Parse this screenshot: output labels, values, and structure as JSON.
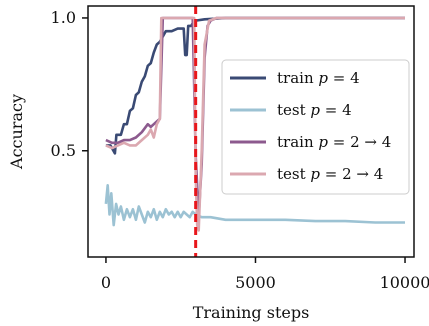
{
  "chart_data": {
    "type": "line",
    "xlabel": "Training steps",
    "ylabel": "Accuracy",
    "xlim": [
      -600,
      10300
    ],
    "ylim": [
      0.1,
      1.045
    ],
    "xticks": [
      {
        "value": 0,
        "label": "0"
      },
      {
        "value": 5000,
        "label": "5000"
      },
      {
        "value": 10000,
        "label": "10000"
      }
    ],
    "yticks": [
      {
        "value": 0.5,
        "label": "0.5"
      },
      {
        "value": 1.0,
        "label": "1.0"
      }
    ],
    "grid": false,
    "legend_position": "center-right",
    "vline": {
      "x": 3000,
      "color": "#e8161b",
      "style": "dashed"
    },
    "series": [
      {
        "name": "train p = 4",
        "color": "#3a4a74",
        "points": [
          [
            0,
            0.52
          ],
          [
            150,
            0.52
          ],
          [
            300,
            0.49
          ],
          [
            350,
            0.56
          ],
          [
            500,
            0.56
          ],
          [
            600,
            0.6
          ],
          [
            700,
            0.6
          ],
          [
            800,
            0.65
          ],
          [
            900,
            0.66
          ],
          [
            1000,
            0.71
          ],
          [
            1100,
            0.72
          ],
          [
            1200,
            0.76
          ],
          [
            1300,
            0.78
          ],
          [
            1400,
            0.82
          ],
          [
            1500,
            0.83
          ],
          [
            1600,
            0.87
          ],
          [
            1700,
            0.9
          ],
          [
            1800,
            0.91
          ],
          [
            1900,
            0.93
          ],
          [
            2000,
            0.95
          ],
          [
            2200,
            0.95
          ],
          [
            2400,
            0.96
          ],
          [
            2600,
            0.96
          ],
          [
            2650,
            0.86
          ],
          [
            2700,
            0.86
          ],
          [
            2750,
            0.97
          ],
          [
            2850,
            0.97
          ],
          [
            2900,
            0.98
          ],
          [
            3000,
            0.99
          ],
          [
            3300,
            0.995
          ],
          [
            4000,
            1.0
          ],
          [
            10000,
            1.0
          ]
        ]
      },
      {
        "name": "test p = 4",
        "color": "#9cc2d3",
        "points": [
          [
            0,
            0.3
          ],
          [
            60,
            0.37
          ],
          [
            120,
            0.26
          ],
          [
            180,
            0.34
          ],
          [
            260,
            0.22
          ],
          [
            340,
            0.3
          ],
          [
            420,
            0.26
          ],
          [
            500,
            0.29
          ],
          [
            600,
            0.24
          ],
          [
            700,
            0.28
          ],
          [
            800,
            0.25
          ],
          [
            900,
            0.28
          ],
          [
            1000,
            0.24
          ],
          [
            1100,
            0.29
          ],
          [
            1200,
            0.26
          ],
          [
            1300,
            0.23
          ],
          [
            1400,
            0.27
          ],
          [
            1500,
            0.25
          ],
          [
            1600,
            0.28
          ],
          [
            1700,
            0.24
          ],
          [
            1800,
            0.27
          ],
          [
            1900,
            0.25
          ],
          [
            2000,
            0.28
          ],
          [
            2100,
            0.26
          ],
          [
            2200,
            0.27
          ],
          [
            2300,
            0.25
          ],
          [
            2400,
            0.27
          ],
          [
            2500,
            0.25
          ],
          [
            2600,
            0.27
          ],
          [
            2700,
            0.26
          ],
          [
            2800,
            0.25
          ],
          [
            2900,
            0.27
          ],
          [
            3000,
            0.26
          ],
          [
            3200,
            0.25
          ],
          [
            3500,
            0.25
          ],
          [
            4000,
            0.24
          ],
          [
            4500,
            0.24
          ],
          [
            5000,
            0.24
          ],
          [
            6000,
            0.24
          ],
          [
            7000,
            0.235
          ],
          [
            8000,
            0.235
          ],
          [
            9000,
            0.23
          ],
          [
            10000,
            0.23
          ]
        ]
      },
      {
        "name": "train p = 2 → 4",
        "color": "#8c5a8e",
        "points": [
          [
            0,
            0.54
          ],
          [
            200,
            0.53
          ],
          [
            400,
            0.53
          ],
          [
            600,
            0.54
          ],
          [
            800,
            0.54
          ],
          [
            1000,
            0.55
          ],
          [
            1200,
            0.57
          ],
          [
            1400,
            0.6
          ],
          [
            1500,
            0.59
          ],
          [
            1600,
            0.6
          ],
          [
            1700,
            0.61
          ],
          [
            1800,
            0.62
          ],
          [
            1900,
            1.0
          ],
          [
            2900,
            1.0
          ],
          [
            3000,
            0.48
          ],
          [
            3100,
            0.25
          ],
          [
            3200,
            0.45
          ],
          [
            3300,
            0.85
          ],
          [
            3400,
            0.97
          ],
          [
            3500,
            0.99
          ],
          [
            3700,
            1.0
          ],
          [
            10000,
            1.0
          ]
        ]
      },
      {
        "name": "test p = 2 → 4",
        "color": "#dba8b0",
        "points": [
          [
            0,
            0.52
          ],
          [
            200,
            0.51
          ],
          [
            400,
            0.52
          ],
          [
            600,
            0.53
          ],
          [
            800,
            0.52
          ],
          [
            1000,
            0.52
          ],
          [
            1200,
            0.54
          ],
          [
            1400,
            0.56
          ],
          [
            1500,
            0.58
          ],
          [
            1600,
            0.55
          ],
          [
            1700,
            0.6
          ],
          [
            1800,
            0.62
          ],
          [
            1850,
            1.0
          ],
          [
            2950,
            1.0
          ],
          [
            3000,
            0.4
          ],
          [
            3050,
            0.22
          ],
          [
            3100,
            0.2
          ],
          [
            3200,
            0.5
          ],
          [
            3300,
            0.9
          ],
          [
            3450,
            0.99
          ],
          [
            3700,
            1.0
          ],
          [
            10000,
            1.0
          ]
        ]
      }
    ],
    "legend": [
      {
        "prefix": "train",
        "sym": "p",
        "rhs": "4"
      },
      {
        "prefix": "test",
        "sym": "p",
        "rhs": "4"
      },
      {
        "prefix": "train",
        "sym": "p",
        "rhs": "2 → 4"
      },
      {
        "prefix": "test",
        "sym": "p",
        "rhs": "2 → 4"
      }
    ]
  }
}
